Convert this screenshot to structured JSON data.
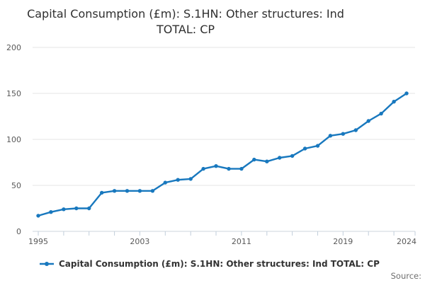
{
  "title": "Capital Consumption (£m): S.1HN: Other structures: Ind TOTAL: CP",
  "legend": {
    "label": "Capital Consumption (£m): S.1HN: Other structures: Ind TOTAL: CP",
    "marker_icon": "line-dot-icon"
  },
  "source_label": "Source:",
  "colors": {
    "line": "#1878be",
    "grid": "#e4e4e4",
    "axis": "#ccd5dd",
    "tick": "#c2cedb",
    "tick_label": "#595959",
    "title_text": "#2f2f2f",
    "legend_text": "#333333",
    "source_text": "#6e6e6e",
    "background": "#ffffff"
  },
  "chart_data": {
    "type": "line",
    "title": "Capital Consumption (£m): S.1HN: Other structures: Ind TOTAL: CP",
    "series_name": "Capital Consumption (£m): S.1HN: Other structures: Ind TOTAL: CP",
    "x": [
      1995,
      1996,
      1997,
      1998,
      1999,
      2000,
      2001,
      2002,
      2003,
      2004,
      2005,
      2006,
      2007,
      2008,
      2009,
      2010,
      2011,
      2012,
      2013,
      2014,
      2015,
      2016,
      2017,
      2018,
      2019,
      2020,
      2021,
      2022,
      2023,
      2024
    ],
    "values": [
      17,
      21,
      24,
      25,
      25,
      42,
      44,
      44,
      44,
      44,
      53,
      56,
      57,
      68,
      71,
      68,
      68,
      78,
      76,
      80,
      82,
      90,
      93,
      104,
      106,
      110,
      120,
      128,
      141,
      150
    ],
    "xlabel": "",
    "ylabel": "",
    "ylim": [
      0,
      200
    ],
    "yticks": [
      0,
      50,
      100,
      150,
      200
    ],
    "xtick_labels": [
      1995,
      2003,
      2011,
      2019,
      2024
    ],
    "xtick_minor_years": [
      1995,
      1997,
      1999,
      2001,
      2003,
      2005,
      2007,
      2009,
      2011,
      2013,
      2015,
      2017,
      2019,
      2021,
      2023
    ],
    "grid": true,
    "marker": "circle",
    "legend_position": "bottom"
  }
}
